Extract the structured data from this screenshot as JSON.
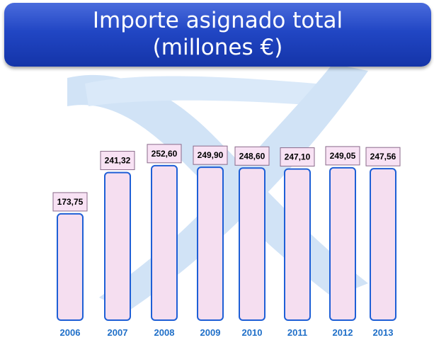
{
  "chart_data": {
    "type": "bar",
    "title_lines": [
      "Importe asignado total",
      "(millones €)"
    ],
    "categories": [
      "2006",
      "2007",
      "2008",
      "2009",
      "2010",
      "2011",
      "2012",
      "2013"
    ],
    "values": [
      173.75,
      241.32,
      252.6,
      249.9,
      248.6,
      247.1,
      249.05,
      247.56
    ],
    "value_labels": [
      "173,75",
      "241,32",
      "252,60",
      "249,90",
      "248,60",
      "247,10",
      "249,05",
      "247,56"
    ],
    "xlabel": "",
    "ylabel": "",
    "grid": false,
    "colors": {
      "bar_fill": "#f5def0",
      "bar_stroke": "#1e5fd6",
      "label_box_fill": "#f8e2f4",
      "label_box_stroke": "#8a6a8a",
      "year_text": "#1f6fc8",
      "watermark": "#c9dff5",
      "banner": "#2146c4"
    }
  }
}
